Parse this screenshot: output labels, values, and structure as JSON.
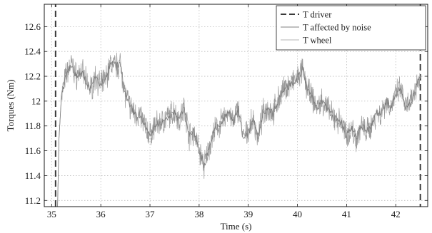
{
  "chart_data": {
    "type": "line",
    "title": "",
    "xlabel": "Time (s)",
    "ylabel": "Torques (Nm)",
    "xlim": [
      34.85,
      42.65
    ],
    "ylim": [
      11.15,
      12.78
    ],
    "x_ticks": [
      35,
      36,
      37,
      38,
      39,
      40,
      41,
      42
    ],
    "x_tick_labels": [
      "35",
      "36",
      "37",
      "38",
      "39",
      "40",
      "41",
      "42"
    ],
    "y_ticks": [
      11.2,
      11.4,
      11.6,
      11.8,
      12.0,
      12.2,
      12.4,
      12.6
    ],
    "y_tick_labels": [
      "11.2",
      "11.4",
      "11.6",
      "11.8",
      "12",
      "12.2",
      "12.4",
      "12.6"
    ],
    "grid": true,
    "legend_position": "top-right",
    "series": [
      {
        "name": "T driver",
        "style": "dashed",
        "color": "#3a3a3a",
        "x": [
          35.08,
          35.08,
          42.5,
          42.5
        ],
        "y": [
          11.15,
          12.78,
          12.78,
          11.15
        ]
      },
      {
        "name": "T affected by noise",
        "style": "noisy",
        "color": "#9a9a9a",
        "x": [
          35.12,
          35.15,
          35.2,
          35.3,
          35.4,
          35.5,
          35.6,
          35.7,
          35.8,
          35.9,
          36.0,
          36.1,
          36.2,
          36.3,
          36.4,
          36.5,
          36.6,
          36.7,
          36.8,
          36.9,
          37.0,
          37.1,
          37.2,
          37.3,
          37.4,
          37.5,
          37.6,
          37.7,
          37.8,
          37.9,
          38.0,
          38.1,
          38.2,
          38.3,
          38.4,
          38.5,
          38.6,
          38.7,
          38.8,
          38.9,
          39.0,
          39.1,
          39.2,
          39.3,
          39.4,
          39.5,
          39.6,
          39.7,
          39.8,
          39.9,
          40.0,
          40.1,
          40.2,
          40.3,
          40.4,
          40.5,
          40.6,
          40.7,
          40.8,
          40.9,
          41.0,
          41.1,
          41.2,
          41.3,
          41.4,
          41.5,
          41.6,
          41.7,
          41.8,
          41.9,
          42.0,
          42.1,
          42.2,
          42.3,
          42.4,
          42.5
        ],
        "y": [
          11.15,
          11.7,
          12.05,
          12.22,
          12.3,
          12.2,
          12.25,
          12.15,
          12.1,
          12.2,
          12.12,
          12.18,
          12.3,
          12.28,
          12.3,
          12.05,
          11.95,
          11.9,
          11.88,
          11.8,
          11.72,
          11.8,
          11.82,
          11.85,
          11.88,
          11.92,
          11.85,
          11.95,
          11.72,
          11.75,
          11.6,
          11.48,
          11.62,
          11.75,
          11.8,
          11.85,
          11.92,
          11.82,
          11.95,
          11.7,
          11.75,
          11.85,
          11.7,
          11.9,
          11.95,
          11.9,
          12.0,
          12.08,
          12.12,
          12.15,
          12.18,
          12.25,
          12.1,
          12.02,
          11.95,
          12.0,
          11.95,
          11.88,
          11.85,
          11.82,
          11.72,
          11.78,
          11.7,
          11.8,
          11.75,
          11.8,
          11.9,
          11.9,
          12.0,
          11.95,
          12.05,
          12.1,
          11.95,
          11.98,
          12.1,
          12.2
        ]
      },
      {
        "name": "T wheel",
        "style": "smooth",
        "color": "#c4c4c4",
        "x": [
          35.12,
          35.15,
          35.2,
          35.3,
          35.4,
          35.5,
          35.6,
          35.7,
          35.8,
          35.9,
          36.0,
          36.1,
          36.2,
          36.3,
          36.4,
          36.5,
          36.6,
          36.7,
          36.8,
          36.9,
          37.0,
          37.1,
          37.2,
          37.3,
          37.4,
          37.5,
          37.6,
          37.7,
          37.8,
          37.9,
          38.0,
          38.1,
          38.2,
          38.3,
          38.4,
          38.5,
          38.6,
          38.7,
          38.8,
          38.9,
          39.0,
          39.1,
          39.2,
          39.3,
          39.4,
          39.5,
          39.6,
          39.7,
          39.8,
          39.9,
          40.0,
          40.1,
          40.2,
          40.3,
          40.4,
          40.5,
          40.6,
          40.7,
          40.8,
          40.9,
          41.0,
          41.1,
          41.2,
          41.3,
          41.4,
          41.5,
          41.6,
          41.7,
          41.8,
          41.9,
          42.0,
          42.1,
          42.2,
          42.3,
          42.4,
          42.5
        ],
        "y": [
          11.15,
          11.7,
          12.05,
          12.22,
          12.3,
          12.2,
          12.25,
          12.15,
          12.1,
          12.2,
          12.12,
          12.18,
          12.3,
          12.28,
          12.3,
          12.05,
          11.95,
          11.9,
          11.88,
          11.8,
          11.72,
          11.8,
          11.82,
          11.85,
          11.88,
          11.92,
          11.85,
          11.95,
          11.72,
          11.75,
          11.6,
          11.48,
          11.62,
          11.75,
          11.8,
          11.85,
          11.92,
          11.82,
          11.95,
          11.7,
          11.75,
          11.85,
          11.7,
          11.9,
          11.95,
          11.9,
          12.0,
          12.08,
          12.12,
          12.15,
          12.18,
          12.25,
          12.1,
          12.02,
          11.95,
          12.0,
          11.95,
          11.88,
          11.85,
          11.82,
          11.72,
          11.78,
          11.7,
          11.8,
          11.75,
          11.8,
          11.9,
          11.9,
          12.0,
          11.95,
          12.05,
          12.1,
          11.95,
          11.98,
          12.1,
          12.2
        ]
      }
    ]
  }
}
